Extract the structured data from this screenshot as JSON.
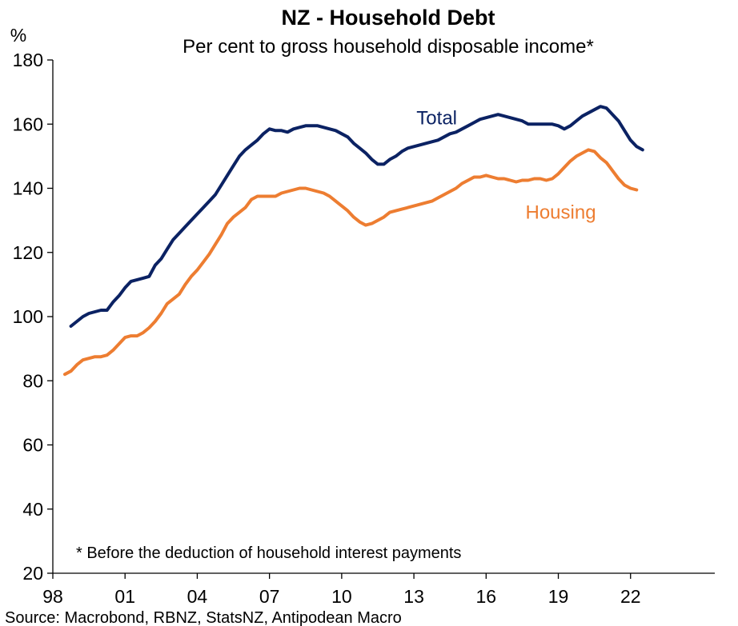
{
  "chart_data": {
    "type": "line",
    "title": "NZ - Household Debt",
    "subtitle": "Per cent to gross household disposable income*",
    "ylabel": "%",
    "ylim": [
      20,
      180
    ],
    "yticks": [
      20,
      40,
      60,
      80,
      100,
      120,
      140,
      160,
      180
    ],
    "xlim": [
      1998.0,
      2025.5
    ],
    "xticks": [
      {
        "value": 1998,
        "label": "98"
      },
      {
        "value": 2001,
        "label": "01"
      },
      {
        "value": 2004,
        "label": "04"
      },
      {
        "value": 2007,
        "label": "07"
      },
      {
        "value": 2010,
        "label": "10"
      },
      {
        "value": 2013,
        "label": "13"
      },
      {
        "value": 2016,
        "label": "16"
      },
      {
        "value": 2019,
        "label": "19"
      },
      {
        "value": 2022,
        "label": "22"
      }
    ],
    "grid": false,
    "note": "* Before the deduction of household interest payments",
    "source": "Source: Macrobond, RBNZ, StatsNZ, Antipodean Macro",
    "series": [
      {
        "name": "Total",
        "color": "#0b2263",
        "points": [
          [
            1998.75,
            97
          ],
          [
            1999.0,
            98.5
          ],
          [
            1999.25,
            100
          ],
          [
            1999.5,
            101
          ],
          [
            1999.75,
            101.5
          ],
          [
            2000.0,
            102
          ],
          [
            2000.25,
            102
          ],
          [
            2000.5,
            104.5
          ],
          [
            2000.75,
            106.5
          ],
          [
            2001.0,
            109
          ],
          [
            2001.25,
            111
          ],
          [
            2001.5,
            111.5
          ],
          [
            2001.75,
            112
          ],
          [
            2002.0,
            112.5
          ],
          [
            2002.25,
            116
          ],
          [
            2002.5,
            118
          ],
          [
            2002.75,
            121
          ],
          [
            2003.0,
            124
          ],
          [
            2003.25,
            126
          ],
          [
            2003.5,
            128
          ],
          [
            2003.75,
            130
          ],
          [
            2004.0,
            132
          ],
          [
            2004.25,
            134
          ],
          [
            2004.5,
            136
          ],
          [
            2004.75,
            138
          ],
          [
            2005.0,
            141
          ],
          [
            2005.25,
            144
          ],
          [
            2005.5,
            147
          ],
          [
            2005.75,
            150
          ],
          [
            2006.0,
            152
          ],
          [
            2006.25,
            153.5
          ],
          [
            2006.5,
            155
          ],
          [
            2006.75,
            157
          ],
          [
            2007.0,
            158.5
          ],
          [
            2007.25,
            158
          ],
          [
            2007.5,
            158
          ],
          [
            2007.75,
            157.5
          ],
          [
            2008.0,
            158.5
          ],
          [
            2008.25,
            159
          ],
          [
            2008.5,
            159.5
          ],
          [
            2008.75,
            159.5
          ],
          [
            2009.0,
            159.5
          ],
          [
            2009.25,
            159
          ],
          [
            2009.5,
            158.5
          ],
          [
            2009.75,
            158
          ],
          [
            2010.0,
            157
          ],
          [
            2010.25,
            156
          ],
          [
            2010.5,
            154
          ],
          [
            2010.75,
            152.5
          ],
          [
            2011.0,
            151
          ],
          [
            2011.25,
            149
          ],
          [
            2011.5,
            147.5
          ],
          [
            2011.75,
            147.5
          ],
          [
            2012.0,
            149
          ],
          [
            2012.25,
            150
          ],
          [
            2012.5,
            151.5
          ],
          [
            2012.75,
            152.5
          ],
          [
            2013.0,
            153
          ],
          [
            2013.25,
            153.5
          ],
          [
            2013.5,
            154
          ],
          [
            2013.75,
            154.5
          ],
          [
            2014.0,
            155
          ],
          [
            2014.25,
            156
          ],
          [
            2014.5,
            157
          ],
          [
            2014.75,
            157.5
          ],
          [
            2015.0,
            158.5
          ],
          [
            2015.25,
            159.5
          ],
          [
            2015.5,
            160.5
          ],
          [
            2015.75,
            161.5
          ],
          [
            2016.0,
            162
          ],
          [
            2016.25,
            162.5
          ],
          [
            2016.5,
            163
          ],
          [
            2016.75,
            162.5
          ],
          [
            2017.0,
            162
          ],
          [
            2017.25,
            161.5
          ],
          [
            2017.5,
            161
          ],
          [
            2017.75,
            160
          ],
          [
            2018.0,
            160
          ],
          [
            2018.25,
            160
          ],
          [
            2018.5,
            160
          ],
          [
            2018.75,
            160
          ],
          [
            2019.0,
            159.5
          ],
          [
            2019.25,
            158.5
          ],
          [
            2019.5,
            159.5
          ],
          [
            2019.75,
            161
          ],
          [
            2020.0,
            162.5
          ],
          [
            2020.25,
            163.5
          ],
          [
            2020.5,
            164.5
          ],
          [
            2020.75,
            165.5
          ],
          [
            2021.0,
            165
          ],
          [
            2021.25,
            163
          ],
          [
            2021.5,
            161
          ],
          [
            2021.75,
            158
          ],
          [
            2022.0,
            155
          ],
          [
            2022.25,
            153
          ],
          [
            2022.5,
            152
          ]
        ]
      },
      {
        "name": "Housing",
        "color": "#ed7d31",
        "points": [
          [
            1998.5,
            82
          ],
          [
            1998.75,
            83
          ],
          [
            1999.0,
            85
          ],
          [
            1999.25,
            86.5
          ],
          [
            1999.5,
            87
          ],
          [
            1999.75,
            87.5
          ],
          [
            2000.0,
            87.5
          ],
          [
            2000.25,
            88
          ],
          [
            2000.5,
            89.5
          ],
          [
            2000.75,
            91.5
          ],
          [
            2001.0,
            93.5
          ],
          [
            2001.25,
            94
          ],
          [
            2001.5,
            94
          ],
          [
            2001.75,
            95
          ],
          [
            2002.0,
            96.5
          ],
          [
            2002.25,
            98.5
          ],
          [
            2002.5,
            101
          ],
          [
            2002.75,
            104
          ],
          [
            2003.0,
            105.5
          ],
          [
            2003.25,
            107
          ],
          [
            2003.5,
            110
          ],
          [
            2003.75,
            112.5
          ],
          [
            2004.0,
            114.5
          ],
          [
            2004.25,
            117
          ],
          [
            2004.5,
            119.5
          ],
          [
            2004.75,
            122.5
          ],
          [
            2005.0,
            125.5
          ],
          [
            2005.25,
            129
          ],
          [
            2005.5,
            131
          ],
          [
            2005.75,
            132.5
          ],
          [
            2006.0,
            134
          ],
          [
            2006.25,
            136.5
          ],
          [
            2006.5,
            137.5
          ],
          [
            2006.75,
            137.5
          ],
          [
            2007.0,
            137.5
          ],
          [
            2007.25,
            137.5
          ],
          [
            2007.5,
            138.5
          ],
          [
            2007.75,
            139
          ],
          [
            2008.0,
            139.5
          ],
          [
            2008.25,
            140
          ],
          [
            2008.5,
            140
          ],
          [
            2008.75,
            139.5
          ],
          [
            2009.0,
            139
          ],
          [
            2009.25,
            138.5
          ],
          [
            2009.5,
            137.5
          ],
          [
            2009.75,
            136
          ],
          [
            2010.0,
            134.5
          ],
          [
            2010.25,
            133
          ],
          [
            2010.5,
            131
          ],
          [
            2010.75,
            129.5
          ],
          [
            2011.0,
            128.5
          ],
          [
            2011.25,
            129
          ],
          [
            2011.5,
            130
          ],
          [
            2011.75,
            131
          ],
          [
            2012.0,
            132.5
          ],
          [
            2012.25,
            133
          ],
          [
            2012.5,
            133.5
          ],
          [
            2012.75,
            134
          ],
          [
            2013.0,
            134.5
          ],
          [
            2013.25,
            135
          ],
          [
            2013.5,
            135.5
          ],
          [
            2013.75,
            136
          ],
          [
            2014.0,
            137
          ],
          [
            2014.25,
            138
          ],
          [
            2014.5,
            139
          ],
          [
            2014.75,
            140
          ],
          [
            2015.0,
            141.5
          ],
          [
            2015.25,
            142.5
          ],
          [
            2015.5,
            143.5
          ],
          [
            2015.75,
            143.5
          ],
          [
            2016.0,
            144
          ],
          [
            2016.25,
            143.5
          ],
          [
            2016.5,
            143
          ],
          [
            2016.75,
            143
          ],
          [
            2017.0,
            142.5
          ],
          [
            2017.25,
            142
          ],
          [
            2017.5,
            142.5
          ],
          [
            2017.75,
            142.5
          ],
          [
            2018.0,
            143
          ],
          [
            2018.25,
            143
          ],
          [
            2018.5,
            142.5
          ],
          [
            2018.75,
            143
          ],
          [
            2019.0,
            144.5
          ],
          [
            2019.25,
            146.5
          ],
          [
            2019.5,
            148.5
          ],
          [
            2019.75,
            150
          ],
          [
            2020.0,
            151
          ],
          [
            2020.25,
            152
          ],
          [
            2020.5,
            151.5
          ],
          [
            2020.75,
            149.5
          ],
          [
            2021.0,
            148
          ],
          [
            2021.25,
            145.5
          ],
          [
            2021.5,
            143
          ],
          [
            2021.75,
            141
          ],
          [
            2022.0,
            140
          ],
          [
            2022.25,
            139.5
          ]
        ]
      }
    ]
  }
}
